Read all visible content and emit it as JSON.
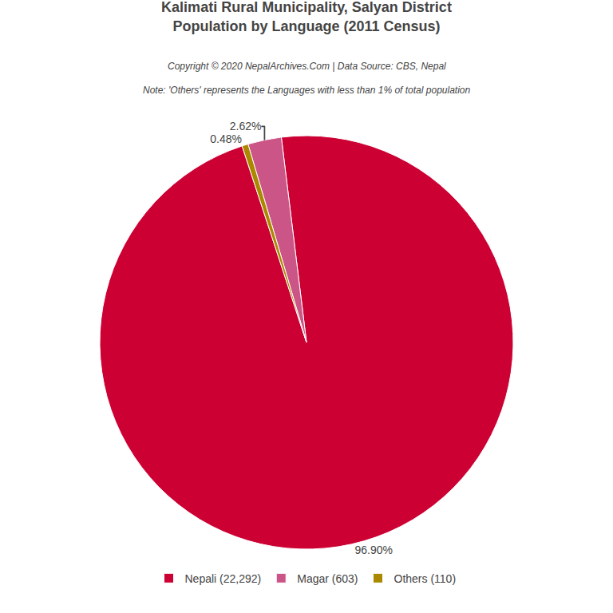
{
  "chart_data": {
    "type": "pie",
    "title": "Kalimati Rural Municipality, Salyan District",
    "subtitle": "Population by Language (2011 Census)",
    "annotations": [
      "Copyright © 2020 NepalArchives.Com | Data Source: CBS, Nepal",
      "Note: 'Others' represents the Languages with less than 1% of total population"
    ],
    "categories": [
      "Nepali (22,292)",
      "Magar (603)",
      "Others (110)"
    ],
    "values": [
      96.9,
      2.62,
      0.48
    ],
    "value_labels": [
      "96.90%",
      "2.62%",
      "0.48%"
    ],
    "colors": [
      "#cc0033",
      "#cc5588",
      "#aa8800"
    ],
    "data_labels": true,
    "legend": "bottom"
  }
}
